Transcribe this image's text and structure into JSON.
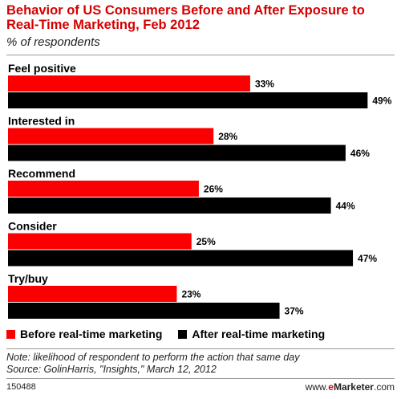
{
  "header": {
    "title": "Behavior of US Consumers Before and After Exposure to Real-Time Marketing, Feb 2012",
    "subtitle": "% of respondents"
  },
  "colors": {
    "before": "#fb0000",
    "after": "#000000",
    "title": "#d60000"
  },
  "chart_data": {
    "type": "bar",
    "orientation": "horizontal",
    "title": "Behavior of US Consumers Before and After Exposure to Real-Time Marketing, Feb 2012",
    "subtitle": "% of respondents",
    "categories": [
      "Feel positive",
      "Interested in",
      "Recommend",
      "Consider",
      "Try/buy"
    ],
    "series": [
      {
        "name": "Before real-time marketing",
        "values": [
          33,
          28,
          26,
          25,
          23
        ]
      },
      {
        "name": "After real-time marketing",
        "values": [
          49,
          46,
          44,
          47,
          37
        ]
      }
    ],
    "value_suffix": "%",
    "xlim": [
      0,
      50
    ],
    "grid": false,
    "legend_position": "bottom-left"
  },
  "legend": {
    "before_label": "Before real-time marketing",
    "after_label": "After real-time marketing"
  },
  "footer": {
    "note": "Note: likelihood of respondent to perform the action that same day",
    "source": "Source: GolinHarris, \"Insights,\" March 12, 2012",
    "chart_id": "150488",
    "brand_prefix": "www.",
    "brand_e": "e",
    "brand_name": "Marketer",
    "brand_suffix": ".com"
  }
}
